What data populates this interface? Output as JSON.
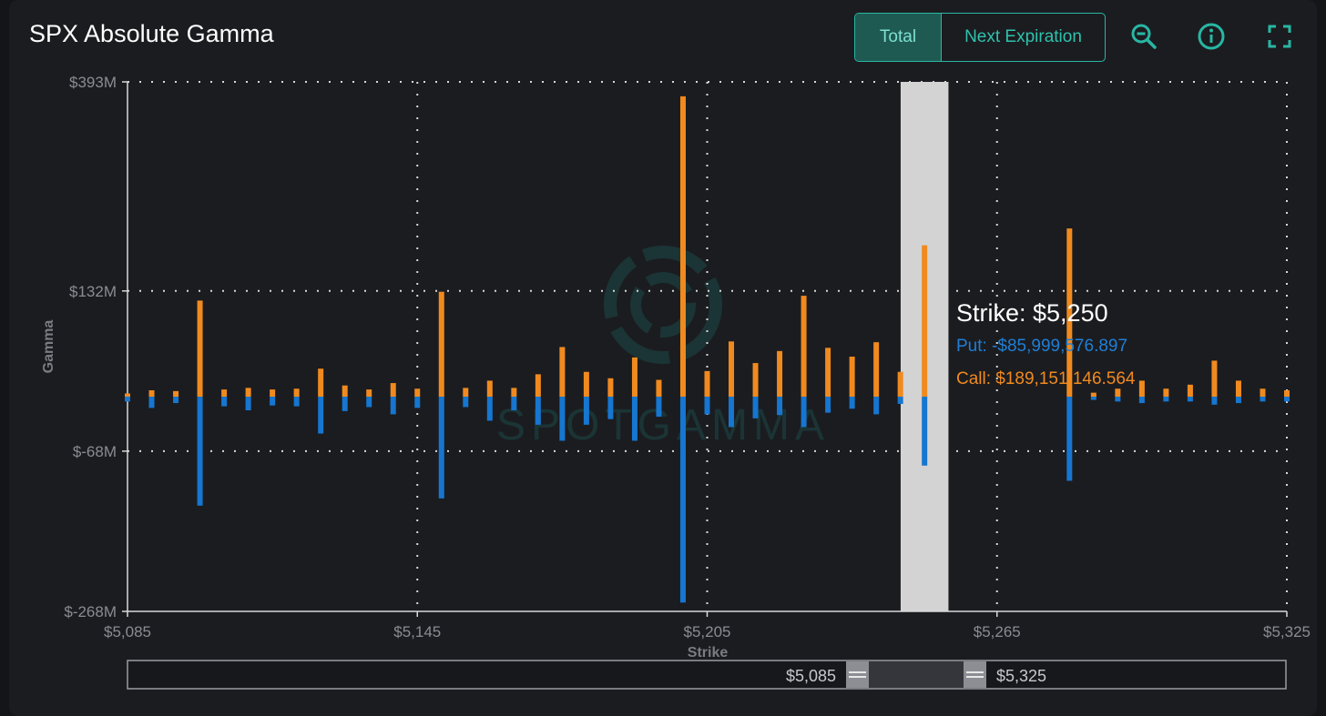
{
  "title": "SPX Absolute Gamma",
  "buttons": {
    "total": "Total",
    "next_expiration": "Next Expiration"
  },
  "icons": [
    "zoom-out-icon",
    "info-icon",
    "fullscreen-icon"
  ],
  "colors": {
    "call": "#f08a1f",
    "put": "#1676d0",
    "accent": "#27b7a3",
    "highlight": "#d3d3d3"
  },
  "watermark": "SPOTGAMMA",
  "tooltip": {
    "strike": "Strike: $5,250",
    "put": "Put: -$85,999,576.897",
    "call": "Call: $189,151,146.564"
  },
  "range_slider": {
    "min_label": "$5,085",
    "max_label": "$5,325"
  },
  "chart_data": {
    "type": "bar",
    "title": "SPX Absolute Gamma",
    "xlabel": "Strike",
    "ylabel": "Gamma",
    "xlim": [
      5085,
      5325
    ],
    "ylim": [
      -268,
      393
    ],
    "y_unit": "$M",
    "x_ticks": [
      {
        "value": 5085,
        "label": "$5,085"
      },
      {
        "value": 5145,
        "label": "$5,145"
      },
      {
        "value": 5205,
        "label": "$5,205"
      },
      {
        "value": 5265,
        "label": "$5,265"
      },
      {
        "value": 5325,
        "label": "$5,325"
      }
    ],
    "y_ticks": [
      {
        "value": 393,
        "label": "$393M"
      },
      {
        "value": 132,
        "label": "$132M"
      },
      {
        "value": -68,
        "label": "$-68M"
      },
      {
        "value": -268,
        "label": "$-268M"
      }
    ],
    "grid": true,
    "highlight_strike": 5250,
    "series": [
      {
        "name": "Call",
        "x": [
          5085,
          5090,
          5095,
          5100,
          5105,
          5110,
          5115,
          5120,
          5125,
          5130,
          5135,
          5140,
          5145,
          5150,
          5155,
          5160,
          5165,
          5170,
          5175,
          5180,
          5185,
          5190,
          5195,
          5200,
          5205,
          5210,
          5215,
          5220,
          5225,
          5230,
          5235,
          5240,
          5245,
          5250,
          5280,
          5285,
          5290,
          5295,
          5300,
          5305,
          5310,
          5315,
          5320,
          5325
        ],
        "values": [
          4,
          8,
          7,
          120,
          9,
          11,
          9,
          10,
          35,
          14,
          9,
          17,
          10,
          131,
          11,
          20,
          11,
          28,
          62,
          31,
          23,
          49,
          21,
          375,
          32,
          69,
          42,
          57,
          126,
          61,
          50,
          68,
          31,
          189,
          210,
          5,
          10,
          20,
          10,
          15,
          45,
          20,
          10,
          8
        ]
      },
      {
        "name": "Put",
        "values": [
          -6,
          -14,
          -8,
          -136,
          -12,
          -17,
          -11,
          -12,
          -46,
          -18,
          -13,
          -22,
          -14,
          -127,
          -13,
          -30,
          -17,
          -35,
          -55,
          -35,
          -28,
          -55,
          -25,
          -257,
          -22,
          -38,
          -27,
          -23,
          -38,
          -20,
          -15,
          -22,
          -9,
          -86,
          -105,
          -4,
          -6,
          -8,
          -6,
          -6,
          -10,
          -8,
          -6,
          -6
        ]
      }
    ]
  }
}
